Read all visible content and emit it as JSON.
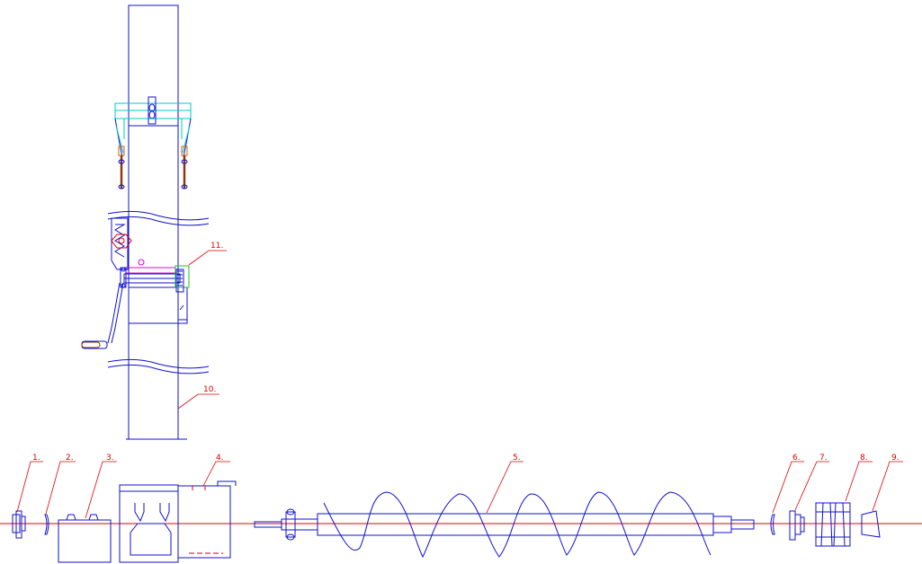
{
  "drawing": {
    "colors": {
      "outline": "#1010d0",
      "callout": "#e00000",
      "clamp": "#00c8c8",
      "gear": "#e000e0",
      "bracket": "#20c020",
      "handle": "#8a3a10"
    },
    "callouts": [
      {
        "label": "1."
      },
      {
        "label": "2."
      },
      {
        "label": "3."
      },
      {
        "label": "4."
      },
      {
        "label": "5."
      },
      {
        "label": "6."
      },
      {
        "label": "7."
      },
      {
        "label": "8."
      },
      {
        "label": "9."
      },
      {
        "label": "10."
      },
      {
        "label": "11."
      }
    ]
  }
}
